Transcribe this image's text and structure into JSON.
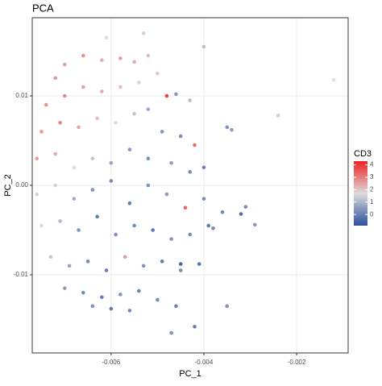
{
  "chart_data": {
    "type": "scatter",
    "title": "PCA",
    "x_label": "PC_1",
    "y_label": "PC_2",
    "legend_title": "CD3",
    "xlim": [
      -0.0077,
      -0.00089
    ],
    "ylim": [
      -0.01874,
      0.01874
    ],
    "xticks": [
      -0.006,
      -0.004,
      -0.002
    ],
    "yticks": [
      -0.01,
      {
        "value": 0,
        "label": "0.00"
      },
      0.01
    ],
    "grid": true,
    "color_scale": {
      "low": "#2c4e9c",
      "mid": "#dcdcdc",
      "high": "#ee2020",
      "midpoint": 1.7,
      "lim": [
        -0.9,
        4.3
      ],
      "ticks": [
        0,
        1,
        2,
        3,
        4
      ]
    },
    "x": [
      -0.0072,
      -0.007,
      -0.0066,
      -0.0062,
      -0.0058,
      -0.0055,
      -0.0052,
      -0.0074,
      -0.007,
      -0.0066,
      -0.0062,
      -0.0058,
      -0.0054,
      -0.005,
      -0.0048,
      -0.0046,
      -0.0075,
      -0.0071,
      -0.0067,
      -0.0063,
      -0.0059,
      -0.0055,
      -0.0052,
      -0.0049,
      -0.0045,
      -0.0042,
      -0.0076,
      -0.0072,
      -0.0068,
      -0.0064,
      -0.006,
      -0.0056,
      -0.0052,
      -0.0047,
      -0.0043,
      -0.004,
      -0.0076,
      -0.0072,
      -0.0068,
      -0.0064,
      -0.006,
      -0.0056,
      -0.0052,
      -0.0048,
      -0.0044,
      -0.004,
      -0.0036,
      -0.0075,
      -0.0071,
      -0.0067,
      -0.0063,
      -0.0059,
      -0.0055,
      -0.0051,
      -0.0047,
      -0.0043,
      -0.0039,
      -0.0073,
      -0.0069,
      -0.0065,
      -0.0061,
      -0.0057,
      -0.0053,
      -0.0049,
      -0.0045,
      -0.0041,
      -0.007,
      -0.0066,
      -0.0062,
      -0.0058,
      -0.0054,
      -0.005,
      -0.0046,
      -0.0064,
      -0.006,
      -0.0056,
      -0.0047,
      -0.0042,
      -0.0035,
      -0.0012,
      -0.0024,
      -0.0035,
      -0.0032,
      -0.0031,
      -0.0029,
      -0.0034,
      -0.0043,
      -0.004,
      -0.0053,
      -0.0061,
      -0.0045,
      -0.0038
    ],
    "y": [
      0.012,
      0.0135,
      0.0145,
      0.014,
      0.0142,
      0.0138,
      0.0145,
      0.009,
      0.01,
      0.011,
      0.0105,
      0.011,
      0.0115,
      0.0125,
      0.01,
      0.0102,
      0.006,
      0.007,
      0.0065,
      0.0075,
      0.007,
      0.008,
      0.0085,
      0.006,
      0.0055,
      0.0045,
      0.003,
      0.0035,
      0.002,
      0.003,
      0.0025,
      0.004,
      0.003,
      0.0025,
      0.0015,
      0.002,
      -0.001,
      0.0,
      -0.0015,
      -0.0005,
      0.0005,
      -0.002,
      0.0,
      -0.001,
      -0.0025,
      -0.0015,
      -0.003,
      -0.0045,
      -0.004,
      -0.005,
      -0.0035,
      -0.0055,
      -0.0045,
      -0.005,
      -0.006,
      -0.0055,
      -0.0045,
      -0.008,
      -0.009,
      -0.0085,
      -0.0095,
      -0.008,
      -0.009,
      -0.0085,
      -0.0095,
      -0.0088,
      -0.0115,
      -0.012,
      -0.0125,
      -0.0122,
      -0.0118,
      -0.0128,
      -0.0135,
      -0.0135,
      -0.0138,
      -0.014,
      -0.0165,
      -0.0158,
      -0.0135,
      0.0118,
      0.0078,
      0.0065,
      -0.0032,
      -0.0024,
      -0.0044,
      0.0062,
      0.0095,
      0.0155,
      0.017,
      0.0165,
      -0.0088,
      -0.0048
    ],
    "color_values": [
      2.8,
      2.6,
      2.9,
      2.4,
      2.7,
      2.5,
      2.2,
      2.9,
      3.0,
      2.7,
      2.5,
      2.3,
      1.9,
      2.1,
      4.2,
      0.3,
      2.8,
      3.1,
      2.6,
      2.2,
      1.6,
      1.2,
      0.6,
      0.2,
      0.1,
      3.5,
      2.7,
      2.5,
      1.8,
      1.2,
      0.5,
      0.3,
      0.1,
      0.4,
      0.0,
      -0.2,
      2.0,
      1.5,
      0.6,
      0.2,
      0.0,
      -0.3,
      0.1,
      0.3,
      3.6,
      0.0,
      -0.1,
      1.6,
      0.9,
      0.2,
      -0.2,
      0.1,
      0.0,
      -0.4,
      0.2,
      0.0,
      -0.3,
      1.2,
      0.5,
      0.0,
      -0.2,
      2.8,
      0.1,
      -0.3,
      0.0,
      -0.5,
      0.4,
      0.0,
      -0.3,
      0.2,
      -0.1,
      0.0,
      -0.2,
      0.1,
      -0.4,
      0.0,
      0.2,
      -0.3,
      0.1,
      1.7,
      1.4,
      0.2,
      -0.6,
      0.0,
      0.3,
      0.4,
      1.0,
      1.1,
      2.0,
      1.8,
      -0.8,
      0.0
    ]
  }
}
